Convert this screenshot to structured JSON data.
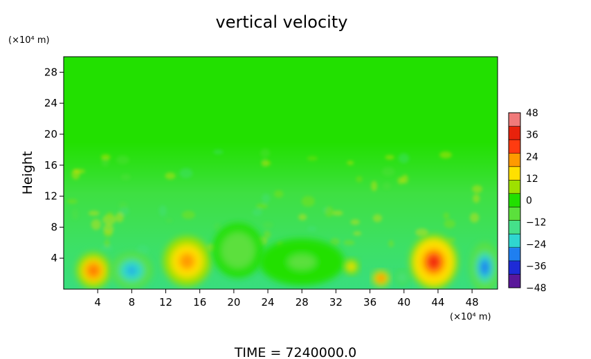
{
  "chart_data": {
    "type": "heatmap",
    "title": "vertical velocity",
    "ylabel": "Height",
    "y_unit": "(×10⁴ m)",
    "x_unit": "(×10⁴ m)",
    "footer": "TIME  =  7240000.0",
    "xlim": [
      0,
      51
    ],
    "ylim": [
      0,
      30
    ],
    "x_ticks": [
      4,
      8,
      12,
      16,
      20,
      24,
      28,
      32,
      36,
      40,
      44,
      48
    ],
    "y_ticks": [
      4,
      8,
      12,
      16,
      20,
      24,
      28
    ],
    "colorbar": {
      "min": -48,
      "max": 48,
      "ticks": [
        48,
        36,
        24,
        12,
        0,
        -12,
        -24,
        -36,
        -48
      ],
      "colors": [
        "#5a189a",
        "#1e2bd6",
        "#1f7ff0",
        "#2fd6d0",
        "#45e08a",
        "#5be03c",
        "#22e000",
        "#9ee000",
        "#ffe000",
        "#ff9a00",
        "#ff3b10",
        "#e8220c",
        "#f07a7a"
      ]
    },
    "background_value": 0,
    "features": [
      {
        "x": 3.5,
        "y": 2.4,
        "value": 33,
        "rx": 2.0,
        "ry": 2.3
      },
      {
        "x": 8.0,
        "y": 2.4,
        "value": -33,
        "rx": 2.4,
        "ry": 2.3
      },
      {
        "x": 14.5,
        "y": 3.6,
        "value": 26,
        "rx": 2.8,
        "ry": 3.2
      },
      {
        "x": 20.5,
        "y": 5.0,
        "value": -9,
        "rx": 3.0,
        "ry": 3.5
      },
      {
        "x": 28.0,
        "y": 3.5,
        "value": -6,
        "rx": 5.0,
        "ry": 3.0
      },
      {
        "x": 33.8,
        "y": 2.9,
        "value": 18,
        "rx": 0.9,
        "ry": 1.0
      },
      {
        "x": 37.3,
        "y": 1.4,
        "value": 36,
        "rx": 1.0,
        "ry": 1.0
      },
      {
        "x": 39.8,
        "y": 1.5,
        "value": -24,
        "rx": 0.8,
        "ry": 0.9
      },
      {
        "x": 43.5,
        "y": 3.5,
        "value": 36,
        "rx": 2.8,
        "ry": 3.5
      },
      {
        "x": 49.5,
        "y": 2.8,
        "value": -34,
        "rx": 1.7,
        "ry": 3.2
      }
    ]
  }
}
